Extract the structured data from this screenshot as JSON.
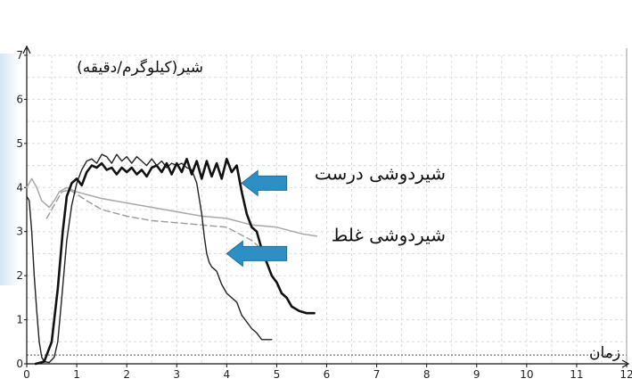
{
  "chart_data": {
    "type": "line",
    "ylabel": "شیر(کیلوگرم/دقیقه)",
    "xlabel": "زمان",
    "xlim": [
      0,
      12
    ],
    "ylim": [
      0,
      7
    ],
    "x_ticks": [
      "0",
      "1",
      "2",
      "3",
      "4",
      "5",
      "6",
      "7",
      "8",
      "9",
      "10",
      "11",
      "12"
    ],
    "y_ticks": [
      "0",
      "1",
      "2",
      "3",
      "4",
      "5",
      "6",
      "7"
    ],
    "grid": true,
    "colors": {
      "correct_curve": "#111111",
      "incorrect_curve": "#222222",
      "gray_solid": "#a8a8a8",
      "gray_dashed": "#9a9a9a",
      "arrow": "#2e8fc4"
    },
    "annotations": [
      {
        "text": "شیردوشی درست",
        "x": 6.4,
        "y": 4.3
      },
      {
        "text": "شیردوشی غلط",
        "x": 6.4,
        "y": 2.9
      }
    ],
    "arrows": [
      {
        "from": [
          5.2,
          4.1
        ],
        "to": [
          4.3,
          4.1
        ]
      },
      {
        "from": [
          5.2,
          2.5
        ],
        "to": [
          4.0,
          2.5
        ]
      }
    ],
    "threshold": 0.2,
    "series": [
      {
        "style": "thick-black",
        "points": [
          [
            0.18,
            0
          ],
          [
            0.35,
            0.05
          ],
          [
            0.5,
            0.5
          ],
          [
            0.62,
            1.7
          ],
          [
            0.72,
            3.0
          ],
          [
            0.8,
            3.8
          ],
          [
            0.9,
            4.1
          ],
          [
            1.0,
            4.2
          ],
          [
            1.1,
            4.05
          ],
          [
            1.2,
            4.35
          ],
          [
            1.3,
            4.5
          ],
          [
            1.4,
            4.45
          ],
          [
            1.5,
            4.55
          ],
          [
            1.6,
            4.4
          ],
          [
            1.7,
            4.45
          ],
          [
            1.8,
            4.3
          ],
          [
            1.9,
            4.45
          ],
          [
            2.0,
            4.35
          ],
          [
            2.1,
            4.45
          ],
          [
            2.2,
            4.3
          ],
          [
            2.3,
            4.4
          ],
          [
            2.4,
            4.25
          ],
          [
            2.5,
            4.45
          ],
          [
            2.6,
            4.5
          ],
          [
            2.7,
            4.35
          ],
          [
            2.8,
            4.55
          ],
          [
            2.9,
            4.3
          ],
          [
            3.0,
            4.55
          ],
          [
            3.1,
            4.35
          ],
          [
            3.2,
            4.65
          ],
          [
            3.3,
            4.3
          ],
          [
            3.4,
            4.6
          ],
          [
            3.5,
            4.2
          ],
          [
            3.6,
            4.6
          ],
          [
            3.7,
            4.25
          ],
          [
            3.8,
            4.55
          ],
          [
            3.9,
            4.2
          ],
          [
            4.0,
            4.65
          ],
          [
            4.1,
            4.35
          ],
          [
            4.2,
            4.5
          ],
          [
            4.3,
            3.9
          ],
          [
            4.4,
            3.4
          ],
          [
            4.5,
            3.1
          ],
          [
            4.6,
            3.0
          ],
          [
            4.7,
            2.6
          ],
          [
            4.8,
            2.3
          ],
          [
            4.9,
            2.0
          ],
          [
            5.0,
            1.85
          ],
          [
            5.1,
            1.6
          ],
          [
            5.2,
            1.5
          ],
          [
            5.3,
            1.3
          ],
          [
            5.45,
            1.2
          ],
          [
            5.6,
            1.15
          ],
          [
            5.75,
            1.15
          ]
        ]
      },
      {
        "style": "thin-black",
        "points": [
          [
            0.0,
            3.8
          ],
          [
            0.05,
            3.7
          ],
          [
            0.1,
            3.0
          ],
          [
            0.15,
            2.0
          ],
          [
            0.2,
            1.2
          ],
          [
            0.25,
            0.5
          ],
          [
            0.3,
            0.15
          ],
          [
            0.35,
            0.05
          ],
          [
            0.45,
            0.03
          ],
          [
            0.55,
            0.15
          ],
          [
            0.62,
            0.5
          ],
          [
            0.7,
            1.5
          ],
          [
            0.8,
            2.8
          ],
          [
            0.9,
            3.6
          ],
          [
            1.0,
            4.1
          ],
          [
            1.1,
            4.4
          ],
          [
            1.2,
            4.6
          ],
          [
            1.3,
            4.65
          ],
          [
            1.4,
            4.55
          ],
          [
            1.5,
            4.75
          ],
          [
            1.6,
            4.7
          ],
          [
            1.7,
            4.55
          ],
          [
            1.8,
            4.75
          ],
          [
            1.9,
            4.6
          ],
          [
            2.0,
            4.7
          ],
          [
            2.1,
            4.55
          ],
          [
            2.2,
            4.7
          ],
          [
            2.3,
            4.6
          ],
          [
            2.4,
            4.5
          ],
          [
            2.5,
            4.65
          ],
          [
            2.6,
            4.5
          ],
          [
            2.7,
            4.6
          ],
          [
            2.8,
            4.45
          ],
          [
            2.9,
            4.55
          ],
          [
            3.0,
            4.5
          ],
          [
            3.1,
            4.55
          ],
          [
            3.2,
            4.45
          ],
          [
            3.3,
            4.4
          ],
          [
            3.4,
            4.1
          ],
          [
            3.5,
            3.4
          ],
          [
            3.55,
            2.9
          ],
          [
            3.6,
            2.5
          ],
          [
            3.65,
            2.3
          ],
          [
            3.7,
            2.2
          ],
          [
            3.8,
            2.1
          ],
          [
            3.9,
            1.8
          ],
          [
            4.0,
            1.6
          ],
          [
            4.1,
            1.5
          ],
          [
            4.2,
            1.4
          ],
          [
            4.3,
            1.1
          ],
          [
            4.4,
            0.95
          ],
          [
            4.5,
            0.8
          ],
          [
            4.6,
            0.7
          ],
          [
            4.7,
            0.55
          ],
          [
            4.8,
            0.55
          ],
          [
            4.9,
            0.55
          ]
        ]
      },
      {
        "style": "gray-solid",
        "points": [
          [
            0.0,
            4.0
          ],
          [
            0.1,
            4.2
          ],
          [
            0.2,
            4.0
          ],
          [
            0.3,
            3.7
          ],
          [
            0.45,
            3.55
          ],
          [
            0.55,
            3.7
          ],
          [
            0.65,
            3.9
          ],
          [
            0.8,
            4.0
          ],
          [
            1.0,
            3.9
          ],
          [
            1.5,
            3.75
          ],
          [
            2.0,
            3.65
          ],
          [
            2.5,
            3.55
          ],
          [
            3.0,
            3.45
          ],
          [
            3.5,
            3.35
          ],
          [
            4.0,
            3.3
          ],
          [
            4.5,
            3.15
          ],
          [
            5.0,
            3.1
          ],
          [
            5.5,
            2.95
          ],
          [
            5.8,
            2.9
          ]
        ]
      },
      {
        "style": "gray-dashed",
        "points": [
          [
            0.4,
            3.3
          ],
          [
            0.55,
            3.6
          ],
          [
            0.7,
            3.9
          ],
          [
            0.85,
            3.95
          ],
          [
            1.0,
            3.85
          ],
          [
            1.2,
            3.7
          ],
          [
            1.5,
            3.5
          ],
          [
            2.0,
            3.35
          ],
          [
            2.5,
            3.25
          ],
          [
            3.0,
            3.2
          ],
          [
            3.5,
            3.15
          ],
          [
            4.0,
            3.1
          ],
          [
            4.5,
            2.8
          ],
          [
            4.7,
            2.6
          ],
          [
            4.9,
            2.5
          ]
        ]
      }
    ]
  }
}
